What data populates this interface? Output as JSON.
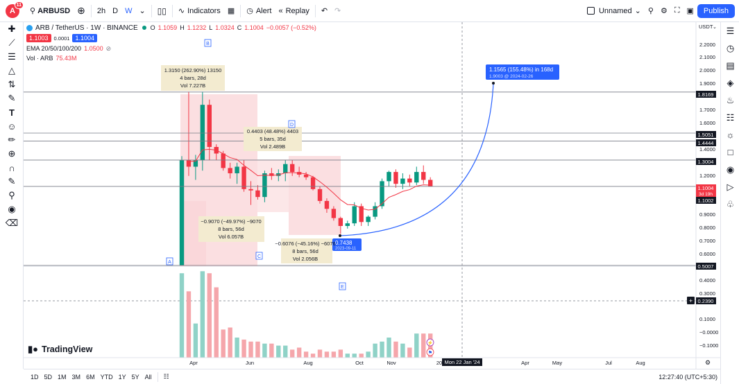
{
  "topbar": {
    "avatar_letter": "A",
    "avatar_badge": "11",
    "symbol": "ARBUSD",
    "interval": "2h",
    "tf_d": "D",
    "tf_w": "W",
    "indicators": "Indicators",
    "alert": "Alert",
    "replay": "Replay",
    "layout_name": "Unnamed",
    "publish": "Publish"
  },
  "legend": {
    "title": "ARB / TetherUS · 1W · BINANCE",
    "o_label": "O",
    "o": "1.1059",
    "h_label": "H",
    "h": "1.1232",
    "l_label": "L",
    "l": "1.0324",
    "c_label": "C",
    "c": "1.1004",
    "change": "−0.0057 (−0.52%)",
    "sell": "1.1003",
    "spread": "0.0001",
    "buy": "1.1004",
    "ema_label": "EMA 20/50/100/200",
    "ema_value": "1.0500",
    "vol_label": "Vol · ARB",
    "vol_value": "75.43M"
  },
  "annotations": {
    "box_a": {
      "line1": "1.3150 (262.90%) 13150",
      "line2": "4 bars, 28d",
      "line3": "Vol 7.227B"
    },
    "box_b": {
      "line1": "0.4403 (48.48%) 4403",
      "line2": "5 bars, 35d",
      "line3": "Vol 2.489B"
    },
    "box_c": {
      "line1": "−0.9070 (−49.97%) −9070",
      "line2": "8 bars, 56d",
      "line3": "Vol 6.057B"
    },
    "box_d": {
      "line1": "−0.6076 (−45.16%) −6076",
      "line2": "8 bars, 56d",
      "line3": "Vol 2.056B"
    },
    "forecast": {
      "line1": "1.1565 (155.48%) in 168d",
      "line2": "1.9003 @ 2024-02-26"
    },
    "low_tag": {
      "line1": "0.7438",
      "line2": "2023-09-11"
    },
    "letters": [
      "A",
      "B",
      "C",
      "D",
      "E"
    ]
  },
  "price_axis": {
    "currency": "USDT",
    "ticks": [
      "2.2000",
      "2.1000",
      "2.0000",
      "1.9000",
      "1.7000",
      "1.6000",
      "1.4000",
      "1.2000",
      "1.1000",
      "1.0000",
      "0.9000",
      "0.8000",
      "0.7000",
      "0.6000",
      "0.4000",
      "0.3000",
      "0.1000",
      "−0.0000",
      "−0.1000"
    ],
    "labels": {
      "l1": "1.8169",
      "l2": "1.5051",
      "l3": "1.4444",
      "l4": "1.3004",
      "current": "1.1004",
      "countdown": "3d 19h",
      "level": "1.1002",
      "low": "0.5007",
      "crosshair": "0.2390"
    }
  },
  "time_axis": {
    "ticks": [
      "Apr",
      "Jun",
      "Aug",
      "Oct",
      "Nov",
      "20",
      "Apr",
      "May",
      "Jul",
      "Aug"
    ],
    "crosshair_date": "Mon 22 Jan '24"
  },
  "branding": "TradingView",
  "bottombar": {
    "ranges": [
      "1D",
      "5D",
      "1M",
      "3M",
      "6M",
      "YTD",
      "1Y",
      "5Y",
      "All"
    ],
    "clock": "12:27:40 (UTC+5:30)"
  },
  "chart_data": {
    "type": "candlestick",
    "symbol": "ARB/USDT",
    "timeframe": "1W",
    "candles": [
      {
        "o": 0.5,
        "h": 1.33,
        "l": 0.5,
        "c": 1.3
      },
      {
        "o": 1.3,
        "h": 1.82,
        "l": 1.18,
        "c": 1.25
      },
      {
        "o": 1.25,
        "h": 1.34,
        "l": 1.15,
        "c": 1.3
      },
      {
        "o": 1.3,
        "h": 1.82,
        "l": 1.22,
        "c": 1.72
      },
      {
        "o": 1.72,
        "h": 1.76,
        "l": 1.3,
        "c": 1.4
      },
      {
        "o": 1.4,
        "h": 1.42,
        "l": 1.3,
        "c": 1.35
      },
      {
        "o": 1.35,
        "h": 1.37,
        "l": 1.22,
        "c": 1.24
      },
      {
        "o": 1.24,
        "h": 1.28,
        "l": 1.16,
        "c": 1.2
      },
      {
        "o": 1.2,
        "h": 1.28,
        "l": 1.12,
        "c": 1.25
      },
      {
        "o": 1.25,
        "h": 1.3,
        "l": 1.06,
        "c": 1.08
      },
      {
        "o": 1.08,
        "h": 1.14,
        "l": 0.96,
        "c": 1.07
      },
      {
        "o": 1.07,
        "h": 1.11,
        "l": 1.0,
        "c": 1.02
      },
      {
        "o": 1.02,
        "h": 1.22,
        "l": 0.98,
        "c": 1.2
      },
      {
        "o": 1.2,
        "h": 1.24,
        "l": 1.15,
        "c": 1.18
      },
      {
        "o": 1.18,
        "h": 1.23,
        "l": 1.14,
        "c": 1.2
      },
      {
        "o": 1.2,
        "h": 1.3,
        "l": 1.14,
        "c": 1.27
      },
      {
        "o": 1.27,
        "h": 1.3,
        "l": 1.18,
        "c": 1.21
      },
      {
        "o": 1.21,
        "h": 1.25,
        "l": 1.17,
        "c": 1.19
      },
      {
        "o": 1.19,
        "h": 1.21,
        "l": 1.15,
        "c": 1.17
      },
      {
        "o": 1.17,
        "h": 1.18,
        "l": 1.07,
        "c": 1.08
      },
      {
        "o": 1.08,
        "h": 1.1,
        "l": 0.97,
        "c": 0.99
      },
      {
        "o": 0.99,
        "h": 1.01,
        "l": 0.9,
        "c": 0.93
      },
      {
        "o": 0.93,
        "h": 0.95,
        "l": 0.84,
        "c": 0.86
      },
      {
        "o": 0.86,
        "h": 0.87,
        "l": 0.74,
        "c": 0.8
      },
      {
        "o": 0.8,
        "h": 0.84,
        "l": 0.78,
        "c": 0.82
      },
      {
        "o": 0.82,
        "h": 0.98,
        "l": 0.8,
        "c": 0.95
      },
      {
        "o": 0.95,
        "h": 0.97,
        "l": 0.8,
        "c": 0.83
      },
      {
        "o": 0.83,
        "h": 0.88,
        "l": 0.8,
        "c": 0.87
      },
      {
        "o": 0.87,
        "h": 0.98,
        "l": 0.85,
        "c": 0.95
      },
      {
        "o": 0.95,
        "h": 1.16,
        "l": 0.93,
        "c": 1.14
      },
      {
        "o": 1.14,
        "h": 1.22,
        "l": 1.1,
        "c": 1.21
      },
      {
        "o": 1.21,
        "h": 1.23,
        "l": 1.09,
        "c": 1.12
      },
      {
        "o": 1.12,
        "h": 1.2,
        "l": 1.08,
        "c": 1.16
      },
      {
        "o": 1.16,
        "h": 1.19,
        "l": 1.1,
        "c": 1.13
      },
      {
        "o": 1.13,
        "h": 1.25,
        "l": 1.11,
        "c": 1.21
      },
      {
        "o": 1.21,
        "h": 1.26,
        "l": 1.12,
        "c": 1.15
      },
      {
        "o": 1.15,
        "h": 1.17,
        "l": 1.1,
        "c": 1.1
      }
    ],
    "volume": [
      0.42,
      0.33,
      0.17,
      0.43,
      0.42,
      0.35,
      0.14,
      0.15,
      0.1,
      0.09,
      0.08,
      0.08,
      0.07,
      0.07,
      0.06,
      0.06,
      0.04,
      0.05,
      0.03,
      0.02,
      0.04,
      0.03,
      0.03,
      0.04,
      0.02,
      0.02,
      0.02,
      0.03,
      0.07,
      0.08,
      0.1,
      0.08,
      0.07,
      0.05,
      0.12,
      0.12,
      0.12
    ],
    "price_range": [
      0.5007,
      2.2
    ],
    "horizontal_levels": [
      1.8169,
      1.5051,
      1.4444,
      1.3004,
      1.1002,
      0.5007
    ]
  }
}
